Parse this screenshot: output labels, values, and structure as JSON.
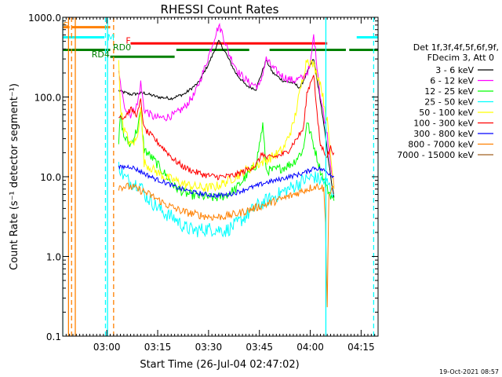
{
  "chart_data": {
    "type": "line",
    "title": "RHESSI Count Rates",
    "xlabel": "Start Time (26-Jul-04 02:47:02)",
    "ylabel": "Count Rate (s⁻¹ detector segment⁻¹)",
    "y_scale": "log",
    "ylim": [
      0.1,
      1000
    ],
    "xlim_min_after_start": [
      0,
      93
    ],
    "x_ticks": [
      {
        "t": 13,
        "label": "03:00"
      },
      {
        "t": 28,
        "label": "03:15"
      },
      {
        "t": 43,
        "label": "03:30"
      },
      {
        "t": 58,
        "label": "03:45"
      },
      {
        "t": 73,
        "label": "04:00"
      },
      {
        "t": 88,
        "label": "04:15"
      }
    ],
    "y_ticks": [
      {
        "v": 0.1,
        "label": "0.1"
      },
      {
        "v": 1,
        "label": "1.0"
      },
      {
        "v": 10,
        "label": "10.0"
      },
      {
        "v": 100,
        "label": "100.0"
      },
      {
        "v": 1000,
        "label": "1000.0"
      }
    ],
    "legend": {
      "header": [
        "Det 1f,3f,4f,5f,6f,9f,",
        "FDecim 3, Att 0"
      ],
      "placement": "right"
    },
    "series": [
      {
        "name": "3 - 6 keV",
        "color": "#000000",
        "points": [
          [
            16.5,
            120
          ],
          [
            20,
            108
          ],
          [
            24,
            112
          ],
          [
            28,
            100
          ],
          [
            32,
            96
          ],
          [
            36,
            110
          ],
          [
            40,
            150
          ],
          [
            43,
            260
          ],
          [
            46,
            500
          ],
          [
            48,
            360
          ],
          [
            51,
            200
          ],
          [
            54,
            140
          ],
          [
            57,
            125
          ],
          [
            60,
            290
          ],
          [
            62,
            200
          ],
          [
            65,
            160
          ],
          [
            68,
            150
          ],
          [
            70,
            130
          ],
          [
            72,
            200
          ],
          [
            74,
            300
          ],
          [
            76,
            90
          ],
          [
            78,
            22
          ],
          [
            79,
            10
          ],
          [
            80,
            5.5
          ]
        ]
      },
      {
        "name": "6 - 12 keV",
        "color": "#ff00ff",
        "points": [
          [
            16.5,
            200
          ],
          [
            18,
            80
          ],
          [
            20,
            60
          ],
          [
            22,
            80
          ],
          [
            23,
            150
          ],
          [
            24,
            70
          ],
          [
            27,
            55
          ],
          [
            30,
            55
          ],
          [
            33,
            60
          ],
          [
            36,
            75
          ],
          [
            39,
            110
          ],
          [
            42,
            240
          ],
          [
            45,
            600
          ],
          [
            46,
            780
          ],
          [
            47,
            650
          ],
          [
            49,
            350
          ],
          [
            52,
            200
          ],
          [
            55,
            150
          ],
          [
            58,
            135
          ],
          [
            60,
            300
          ],
          [
            62,
            230
          ],
          [
            65,
            180
          ],
          [
            68,
            160
          ],
          [
            71,
            175
          ],
          [
            73,
            240
          ],
          [
            74,
            600
          ],
          [
            75,
            250
          ],
          [
            76,
            100
          ],
          [
            78,
            35
          ],
          [
            79,
            15
          ],
          [
            80,
            7.5
          ]
        ]
      },
      {
        "name": "12 - 25 keV",
        "color": "#00ff00",
        "points": [
          [
            16.5,
            25
          ],
          [
            17,
            60
          ],
          [
            18,
            32
          ],
          [
            20,
            25
          ],
          [
            22,
            40
          ],
          [
            23,
            65
          ],
          [
            24,
            22
          ],
          [
            27,
            16
          ],
          [
            30,
            11
          ],
          [
            33,
            7.5
          ],
          [
            36,
            6.2
          ],
          [
            39,
            5.8
          ],
          [
            42,
            5.6
          ],
          [
            45,
            5.4
          ],
          [
            48,
            5.8
          ],
          [
            51,
            7
          ],
          [
            54,
            10
          ],
          [
            57,
            14
          ],
          [
            59,
            45
          ],
          [
            60,
            12
          ],
          [
            62,
            12
          ],
          [
            65,
            13
          ],
          [
            68,
            15
          ],
          [
            71,
            22
          ],
          [
            72,
            50
          ],
          [
            74,
            25
          ],
          [
            76,
            12
          ],
          [
            78,
            7
          ],
          [
            80,
            5
          ]
        ]
      },
      {
        "name": "25 - 50 keV",
        "color": "#00ffff",
        "points": [
          [
            16.5,
            14
          ],
          [
            18,
            10
          ],
          [
            20,
            8.5
          ],
          [
            23,
            8
          ],
          [
            24,
            6
          ],
          [
            27,
            4.5
          ],
          [
            30,
            3.5
          ],
          [
            33,
            3
          ],
          [
            36,
            2.3
          ],
          [
            39,
            2.1
          ],
          [
            42,
            2.2
          ],
          [
            45,
            2.2
          ],
          [
            48,
            2.1
          ],
          [
            51,
            2.5
          ],
          [
            54,
            3.2
          ],
          [
            57,
            4.2
          ],
          [
            60,
            5
          ],
          [
            62,
            5.5
          ],
          [
            65,
            6.5
          ],
          [
            68,
            7.5
          ],
          [
            71,
            9
          ],
          [
            74,
            10
          ],
          [
            76,
            9
          ],
          [
            78,
            8.5
          ],
          [
            80,
            6
          ]
        ]
      },
      {
        "name": "50 - 100 keV",
        "color": "#ffff00",
        "points": [
          [
            16.5,
            260
          ],
          [
            17,
            80
          ],
          [
            18,
            40
          ],
          [
            20,
            25
          ],
          [
            22,
            30
          ],
          [
            23,
            80
          ],
          [
            24,
            15
          ],
          [
            27,
            12
          ],
          [
            30,
            10
          ],
          [
            33,
            9
          ],
          [
            36,
            8
          ],
          [
            39,
            7.5
          ],
          [
            42,
            7.2
          ],
          [
            45,
            7.5
          ],
          [
            48,
            8.5
          ],
          [
            51,
            10
          ],
          [
            54,
            12
          ],
          [
            57,
            14
          ],
          [
            60,
            16
          ],
          [
            62,
            18
          ],
          [
            65,
            22
          ],
          [
            68,
            45
          ],
          [
            70,
            120
          ],
          [
            72,
            300
          ],
          [
            74,
            250
          ],
          [
            76,
            150
          ],
          [
            78,
            50
          ],
          [
            80,
            7
          ]
        ]
      },
      {
        "name": "100 - 300 keV",
        "color": "#ff0000",
        "points": [
          [
            16.5,
            60
          ],
          [
            18,
            55
          ],
          [
            20,
            70
          ],
          [
            22,
            60
          ],
          [
            23,
            90
          ],
          [
            24,
            40
          ],
          [
            27,
            30
          ],
          [
            30,
            22
          ],
          [
            33,
            16
          ],
          [
            36,
            13
          ],
          [
            39,
            11.5
          ],
          [
            42,
            10.5
          ],
          [
            45,
            10
          ],
          [
            48,
            10
          ],
          [
            51,
            10.5
          ],
          [
            54,
            12
          ],
          [
            57,
            14
          ],
          [
            59,
            20
          ],
          [
            60,
            17
          ],
          [
            63,
            18
          ],
          [
            66,
            20
          ],
          [
            69,
            30
          ],
          [
            71,
            40
          ],
          [
            72,
            110
          ],
          [
            74,
            200
          ],
          [
            75,
            60
          ],
          [
            76,
            25
          ],
          [
            78,
            18
          ],
          [
            79,
            23
          ],
          [
            80,
            20
          ]
        ]
      },
      {
        "name": "300 - 800 keV",
        "color": "#0000ff",
        "points": [
          [
            16.5,
            13
          ],
          [
            20,
            13.5
          ],
          [
            24,
            11
          ],
          [
            27,
            9.5
          ],
          [
            30,
            8.5
          ],
          [
            33,
            7.5
          ],
          [
            36,
            6.8
          ],
          [
            39,
            6.3
          ],
          [
            42,
            6
          ],
          [
            45,
            5.8
          ],
          [
            48,
            5.9
          ],
          [
            51,
            6.3
          ],
          [
            54,
            7
          ],
          [
            57,
            7.6
          ],
          [
            60,
            8.5
          ],
          [
            63,
            9
          ],
          [
            66,
            9.8
          ],
          [
            69,
            10.5
          ],
          [
            72,
            11.5
          ],
          [
            74,
            13
          ],
          [
            76,
            12.5
          ],
          [
            78,
            11.5
          ],
          [
            80,
            10
          ]
        ]
      },
      {
        "name": "800 - 7000 keV",
        "color": "#ff8000",
        "points": [
          [
            16.5,
            7.5
          ],
          [
            20,
            7.5
          ],
          [
            24,
            6.5
          ],
          [
            27,
            5.5
          ],
          [
            30,
            4.6
          ],
          [
            33,
            4
          ],
          [
            36,
            3.6
          ],
          [
            39,
            3.4
          ],
          [
            42,
            3.2
          ],
          [
            45,
            3.1
          ],
          [
            48,
            3.2
          ],
          [
            51,
            3.4
          ],
          [
            54,
            3.7
          ],
          [
            57,
            4.1
          ],
          [
            60,
            4.5
          ],
          [
            63,
            5
          ],
          [
            66,
            5.5
          ],
          [
            69,
            6.2
          ],
          [
            72,
            7
          ],
          [
            74,
            7.5
          ],
          [
            76,
            7.6
          ],
          [
            77,
            7
          ],
          [
            77.5,
            2.5
          ],
          [
            78,
            0.25
          ],
          [
            78.5,
            6
          ],
          [
            80,
            7.2
          ]
        ]
      },
      {
        "name": "7000 - 15000 keV",
        "color": "#a06020",
        "points": []
      }
    ],
    "annotations": [
      {
        "label": "S",
        "color": "#ff8000"
      },
      {
        "label": "M",
        "color": "#00ffff"
      },
      {
        "label": "F",
        "color": "#ff0000"
      },
      {
        "label": "RD0",
        "color": "#008000"
      },
      {
        "label": "RD4",
        "color": "#008000"
      }
    ],
    "state_bars": {
      "S": {
        "color": "#ff8000",
        "level": 750,
        "spans": [
          [
            0,
            2
          ],
          [
            2.7,
            14
          ]
        ]
      },
      "M": {
        "color": "#00ffff",
        "level": 560,
        "spans": [
          [
            0,
            12.3
          ],
          [
            86.7,
            94
          ]
        ]
      },
      "F": {
        "color": "#ff0000",
        "level": 470,
        "spans": [
          [
            20,
            78
          ]
        ]
      },
      "RD0": {
        "color": "#008000",
        "level": 390,
        "spans": [
          [
            0,
            14
          ],
          [
            33.5,
            55
          ],
          [
            61,
            83.5
          ],
          [
            84.5,
            94
          ]
        ]
      },
      "RD4": {
        "color": "#008000",
        "level": 320,
        "spans": [
          [
            14,
            33
          ]
        ]
      }
    },
    "vertical_markers": [
      {
        "color": "#00ffff",
        "style": "solid",
        "t": 0
      },
      {
        "color": "#ff8000",
        "style": "solid",
        "t": 1.7
      },
      {
        "color": "#ff8000",
        "style": "dashed",
        "t": 2.6
      },
      {
        "color": "#ff8000",
        "style": "solid",
        "t": 3.7
      },
      {
        "color": "#00ffff",
        "style": "dashed",
        "t": 12.6
      },
      {
        "color": "#00ffff",
        "style": "solid",
        "t": 13.2
      },
      {
        "color": "#ff8000",
        "style": "dashed",
        "t": 15
      },
      {
        "color": "#00ffff",
        "style": "solid",
        "t": 77.6
      },
      {
        "color": "#00ffff",
        "style": "dashed",
        "t": 91.7
      }
    ],
    "footer_stamp": "19-Oct-2021 08:57"
  }
}
